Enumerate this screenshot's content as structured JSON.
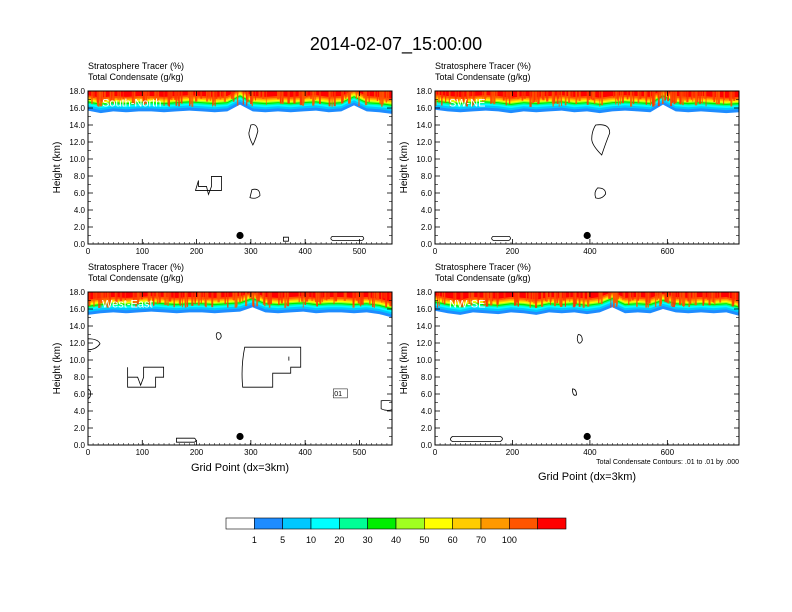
{
  "title": "2014-02-07_15:00:00",
  "chart_data": [
    {
      "type": "heatmap",
      "title_lines": [
        "Stratosphere Tracer   (%)",
        "Total Condensate   (g/kg)"
      ],
      "panel_label": "South-North",
      "ylabel": "Height (km)",
      "xlabel": "",
      "xlim": [
        0,
        560
      ],
      "ylim": [
        0,
        18
      ],
      "xticks": [
        0,
        100,
        200,
        300,
        400,
        500
      ],
      "yticks": [
        0.0,
        2.0,
        4.0,
        6.0,
        8.0,
        10.0,
        12.0,
        14.0,
        16.0,
        18.0
      ],
      "marker": {
        "x": 280,
        "y": 1.0
      },
      "tracer_base_km": [
        15.7,
        15.4,
        15.6,
        15.5,
        15.6,
        15.6,
        15.5,
        15.6,
        15.7,
        15.6,
        15.5,
        15.6,
        16.4,
        15.6,
        15.5,
        15.6,
        15.5,
        15.6,
        15.7,
        15.5,
        15.6,
        16.3,
        15.6,
        15.5,
        15.3
      ]
    },
    {
      "type": "heatmap",
      "title_lines": [
        "Stratosphere Tracer   (%)",
        "Total Condensate   (g/kg)"
      ],
      "panel_label": "SW-NE",
      "ylabel": "Height (km)",
      "xlabel": "",
      "xlim": [
        0,
        785
      ],
      "ylim": [
        0,
        18
      ],
      "xticks": [
        0,
        200,
        400,
        600
      ],
      "yticks": [
        0.0,
        2.0,
        4.0,
        6.0,
        8.0,
        10.0,
        12.0,
        14.0,
        16.0,
        18.0
      ],
      "marker": {
        "x": 393,
        "y": 1.0
      },
      "tracer_base_km": [
        15.8,
        15.6,
        15.5,
        15.6,
        15.7,
        15.6,
        15.4,
        15.6,
        15.5,
        15.6,
        15.7,
        15.5,
        15.6,
        15.4,
        15.6,
        15.7,
        15.6,
        15.5,
        16.4,
        15.6,
        15.5,
        15.6,
        15.5,
        15.4,
        15.5
      ]
    },
    {
      "type": "heatmap",
      "title_lines": [
        "Stratosphere Tracer   (%)",
        "Total Condensate   (g/kg)"
      ],
      "panel_label": "West-East",
      "ylabel": "Height (km)",
      "xlabel": "Grid Point (dx=3km)",
      "xlim": [
        0,
        560
      ],
      "ylim": [
        0,
        18
      ],
      "xticks": [
        0,
        100,
        200,
        300,
        400,
        500
      ],
      "yticks": [
        0.0,
        2.0,
        4.0,
        6.0,
        8.0,
        10.0,
        12.0,
        14.0,
        16.0,
        18.0
      ],
      "marker": {
        "x": 280,
        "y": 1.0
      },
      "contour_label": ".01",
      "tracer_base_km": [
        15.3,
        15.5,
        15.6,
        15.5,
        15.6,
        15.7,
        15.6,
        15.5,
        15.6,
        15.6,
        15.5,
        15.6,
        15.7,
        16.2,
        15.6,
        15.5,
        15.6,
        15.7,
        15.5,
        15.6,
        15.6,
        15.5,
        15.6,
        15.4,
        15.0
      ]
    },
    {
      "type": "heatmap",
      "title_lines": [
        "Stratosphere Tracer   (%)",
        "Total Condensate   (g/kg)"
      ],
      "panel_label": "NW-SE",
      "ylabel": "Height (km)",
      "xlabel": "Grid Point (dx=3km)",
      "xlim": [
        0,
        785
      ],
      "ylim": [
        0,
        18
      ],
      "xticks": [
        0,
        200,
        400,
        600
      ],
      "yticks": [
        0.0,
        2.0,
        4.0,
        6.0,
        8.0,
        10.0,
        12.0,
        14.0,
        16.0,
        18.0
      ],
      "marker": {
        "x": 393,
        "y": 1.0
      },
      "footnote": "Total Condensate Contours: .01 to .01 by .000",
      "tracer_base_km": [
        15.8,
        15.5,
        15.3,
        15.6,
        15.5,
        15.4,
        15.6,
        15.5,
        15.3,
        15.6,
        15.5,
        15.6,
        15.4,
        15.6,
        16.2,
        15.5,
        15.6,
        15.5,
        16.0,
        15.6,
        15.5,
        15.6,
        15.5,
        15.6,
        15.2
      ]
    }
  ],
  "colorbar": {
    "labels": [
      "1",
      "5",
      "10",
      "20",
      "30",
      "40",
      "50",
      "60",
      "70",
      "100"
    ],
    "colors": [
      "#ffffff",
      "#1e8cff",
      "#00c8ff",
      "#00ffff",
      "#00ff96",
      "#00ee00",
      "#a0ff20",
      "#ffff00",
      "#ffcc00",
      "#ff9900",
      "#ff5500",
      "#ff0000"
    ]
  }
}
